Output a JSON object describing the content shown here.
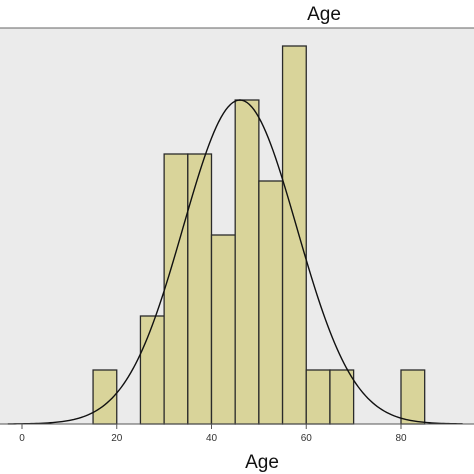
{
  "chart_data": {
    "type": "bar",
    "title": "Age",
    "xlabel": "Age",
    "ylabel": "",
    "xlim": [
      -3,
      93
    ],
    "ylim": [
      0,
      7.8
    ],
    "bin_width": 5,
    "bins": [
      {
        "start": 15,
        "end": 20,
        "count": 1
      },
      {
        "start": 25,
        "end": 30,
        "count": 2
      },
      {
        "start": 30,
        "end": 35,
        "count": 5
      },
      {
        "start": 35,
        "end": 40,
        "count": 5
      },
      {
        "start": 40,
        "end": 45,
        "count": 3.5
      },
      {
        "start": 45,
        "end": 50,
        "count": 6
      },
      {
        "start": 50,
        "end": 55,
        "count": 4.5
      },
      {
        "start": 55,
        "end": 60,
        "count": 7
      },
      {
        "start": 60,
        "end": 65,
        "count": 1
      },
      {
        "start": 65,
        "end": 70,
        "count": 1
      },
      {
        "start": 80,
        "end": 85,
        "count": 1
      }
    ],
    "x_ticks": [
      "0",
      "20",
      "40",
      "60",
      "80"
    ],
    "x_tick_values": [
      0,
      20,
      40,
      60,
      80
    ],
    "normal_curve": {
      "mean": 46,
      "sd": 12,
      "peak": 6.0
    },
    "grid": false,
    "colors": {
      "plot_background": "#ebebeb",
      "bar_fill": "#d9d49a",
      "bar_stroke": "#2a2a2a",
      "curve": "#111111",
      "axis": "#555555"
    }
  }
}
